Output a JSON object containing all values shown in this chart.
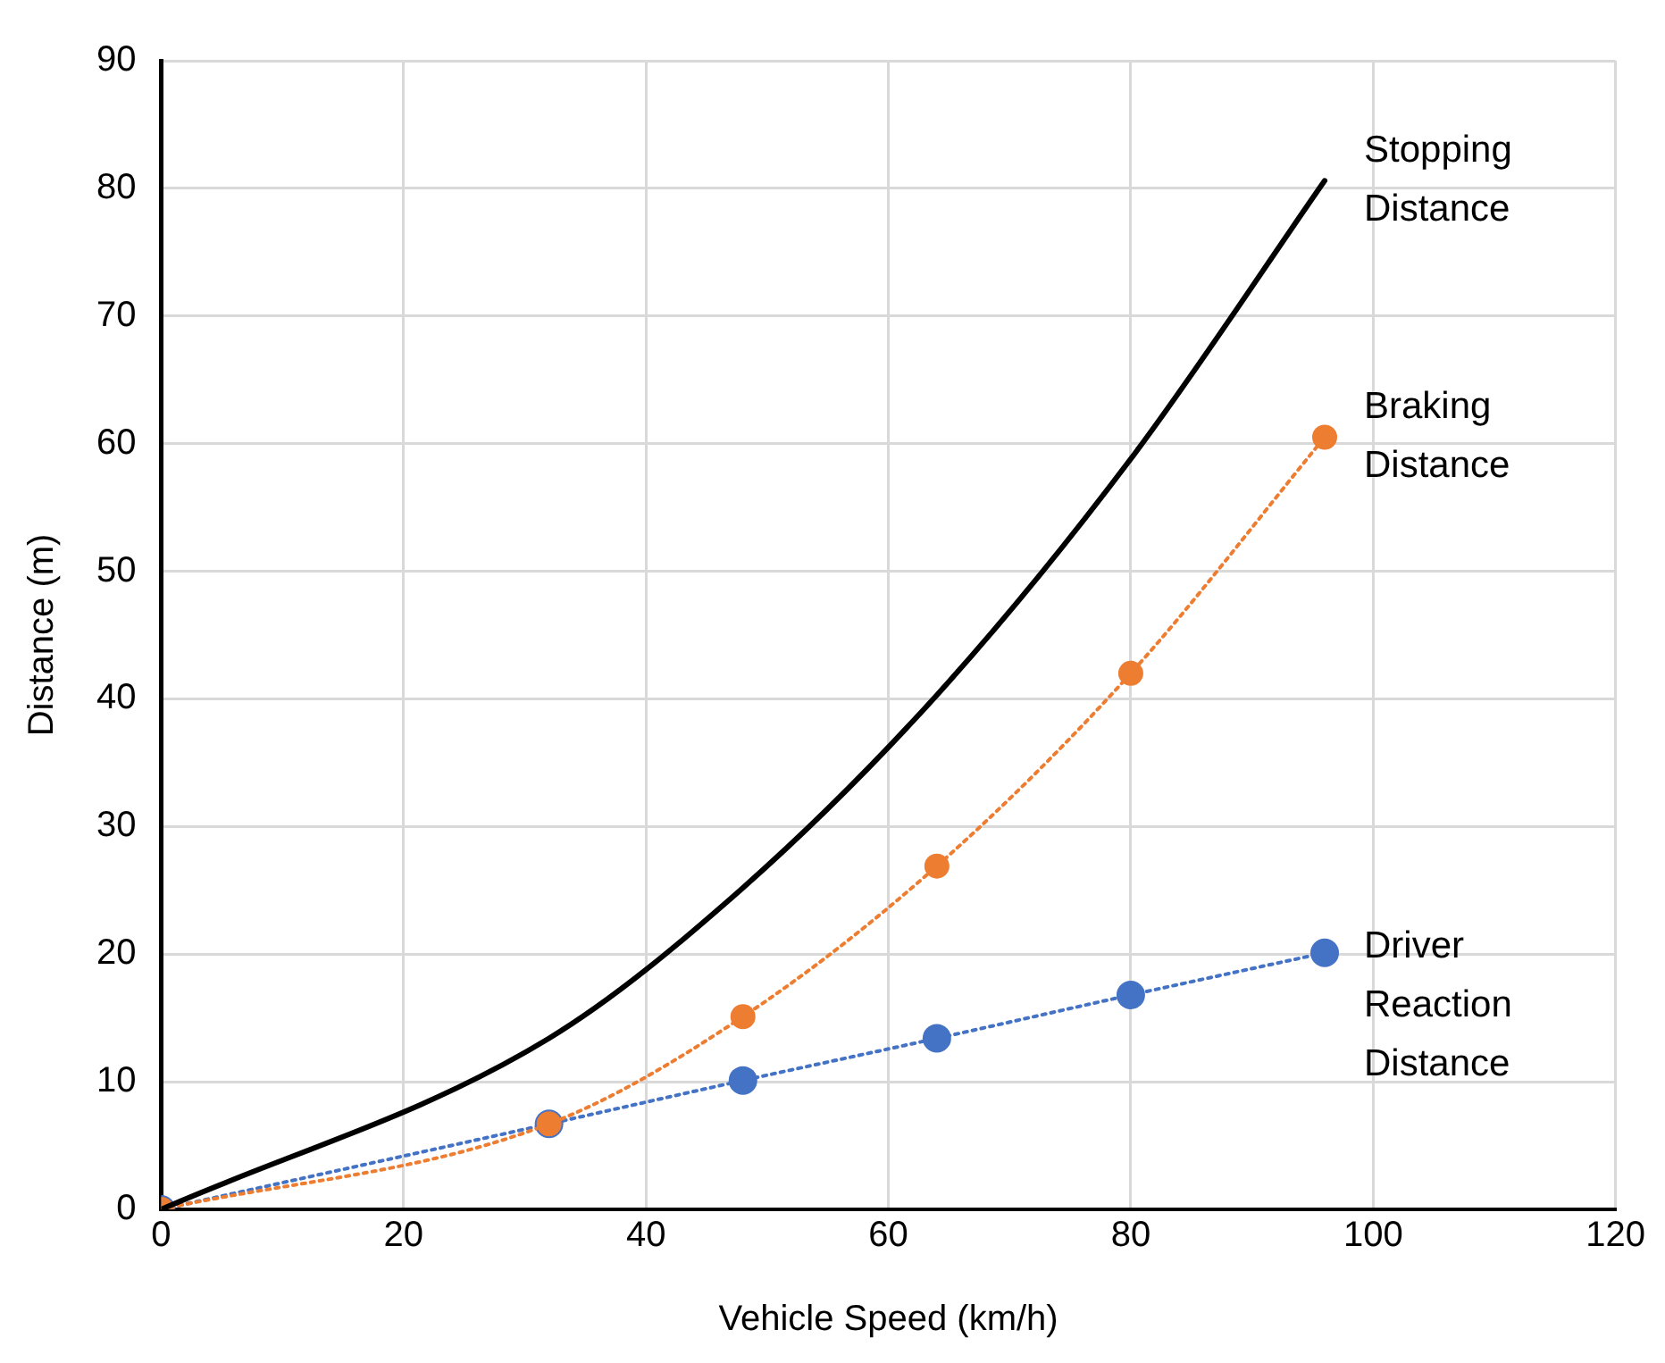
{
  "chart_data": {
    "type": "line",
    "xlabel": "Vehicle Speed (km/h)",
    "ylabel": "Distance (m)",
    "x": [
      0,
      32,
      48,
      64,
      80,
      96
    ],
    "series": [
      {
        "name": "Stopping Distance",
        "color": "#000000",
        "values": [
          0,
          13.4,
          25.2,
          40.3,
          58.8,
          80.6
        ],
        "marker": "none",
        "line_style": "solid"
      },
      {
        "name": "Braking Distance",
        "color": "#ed7d31",
        "values": [
          0,
          6.7,
          15.1,
          26.9,
          42,
          60.5
        ],
        "marker": "circle",
        "line_style": "dotted"
      },
      {
        "name": "Driver Reaction Distance",
        "color": "#4472c4",
        "values": [
          0,
          6.7,
          10.1,
          13.4,
          16.8,
          20.1
        ],
        "marker": "circle",
        "line_style": "dotted"
      }
    ],
    "xlim": [
      0,
      120
    ],
    "xticks": [
      0,
      20,
      40,
      60,
      80,
      100,
      120
    ],
    "ylim": [
      0,
      90
    ],
    "yticks": [
      0,
      10,
      20,
      30,
      40,
      50,
      60,
      70,
      80,
      90
    ],
    "grid": true,
    "legend": false
  }
}
